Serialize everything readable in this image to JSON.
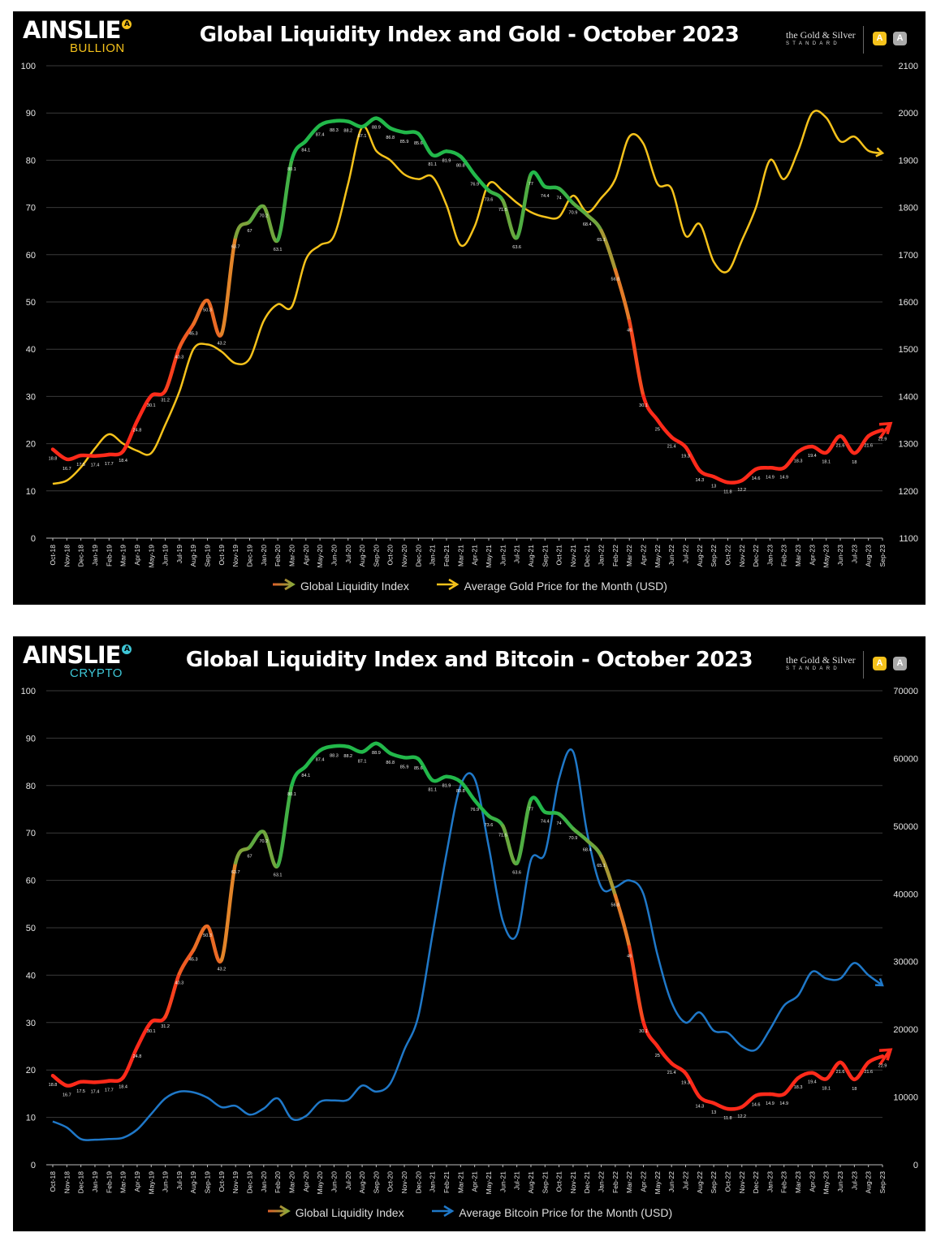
{
  "months": [
    "Oct-18",
    "Nov-18",
    "Dec-18",
    "Jan-19",
    "Feb-19",
    "Mar-19",
    "Apr-19",
    "May-19",
    "Jun-19",
    "Jul-19",
    "Aug-19",
    "Sep-19",
    "Oct-19",
    "Nov-19",
    "Dec-19",
    "Jan-20",
    "Feb-20",
    "Mar-20",
    "Apr-20",
    "May-20",
    "Jun-20",
    "Jul-20",
    "Aug-20",
    "Sep-20",
    "Oct-20",
    "Nov-20",
    "Dec-20",
    "Jan-21",
    "Feb-21",
    "Mar-21",
    "Apr-21",
    "May-21",
    "Jun-21",
    "Jul-21",
    "Aug-21",
    "Sep-21",
    "Oct-21",
    "Nov-21",
    "Dec-21",
    "Jan-22",
    "Feb-22",
    "Mar-22",
    "Apr-22",
    "May-22",
    "Jun-22",
    "Jul-22",
    "Aug-22",
    "Sep-22",
    "Oct-22",
    "Nov-22",
    "Dec-22",
    "Jan-23",
    "Feb-23",
    "Mar-23",
    "Apr-23",
    "May-23",
    "Jun-23",
    "Jul-23",
    "Aug-23",
    "Sep-23"
  ],
  "gli_values": [
    18.8,
    16.7,
    17.5,
    17.4,
    17.7,
    18.4,
    24.8,
    30.1,
    31.2,
    40.3,
    45.3,
    50.3,
    43.2,
    63.7,
    67,
    70.2,
    63.1,
    80.1,
    84.1,
    87.4,
    88.3,
    88.2,
    87.1,
    88.9,
    86.8,
    85.9,
    85.6,
    81.1,
    81.9,
    80.8,
    76.9,
    73.6,
    71.5,
    63.6,
    77,
    74.4,
    74,
    70.9,
    68.4,
    65.1,
    56.8,
    46,
    30.1,
    25,
    21.4,
    19.3,
    14.3,
    13,
    11.8,
    12.2,
    14.6,
    14.9,
    14.9,
    18.3,
    19.4,
    18.1,
    21.6,
    18,
    21.6,
    22.9
  ],
  "gli_labels": [
    "18.8",
    "16.7",
    "17.5",
    "17.4",
    "17.7",
    "18.4",
    "24.8",
    "30.1",
    "31.2",
    "40.3",
    "45.3",
    "50.3",
    "43.2",
    "63.7",
    "67",
    "70.2",
    "63.1",
    "80.1",
    "84.1",
    "87.4",
    "88.3",
    "88.2",
    "87.1",
    "88.9",
    "86.8",
    "85.9",
    "85.6",
    "81.1",
    "81.9",
    "80.8",
    "76.9",
    "73.6",
    "71.5",
    "63.6",
    "77",
    "74.4",
    "74",
    "70.9",
    "68.4",
    "65.1",
    "56.8",
    "46",
    "30.1",
    "25",
    "21.4",
    "19.3",
    "14.3",
    "13",
    "11.8",
    "12.2",
    "14.6",
    "14.9",
    "14.9",
    "18.3",
    "19.4",
    "18.1",
    "21.6",
    "18",
    "21.6",
    "22.9"
  ],
  "colors": {
    "gli_low": "#ff2a1a",
    "gli_mid": "#e08a2a",
    "gli_high": "#22b84a",
    "gold": "#f5c21b",
    "bitcoin": "#1f78c8",
    "grid": "#3a3a3a",
    "axis_text": "#e6e6e6",
    "bullion": "#f5c21b",
    "crypto": "#3ec6d6"
  },
  "chart_data": [
    {
      "type": "line",
      "title": "Global Liquidity Index and Gold - October 2023",
      "logo": {
        "brand": "AINSLIE",
        "sub": "BULLION"
      },
      "partner": {
        "line1": "the Gold & Silver",
        "line2": "STANDARD"
      },
      "left_axis": {
        "ylim": [
          0,
          100
        ],
        "ticks": [
          "0",
          "10",
          "20",
          "30",
          "40",
          "50",
          "60",
          "70",
          "80",
          "90",
          "100"
        ]
      },
      "right_axis": {
        "ylim": [
          1100,
          2100
        ],
        "ticks": [
          "1100",
          "1200",
          "1300",
          "1400",
          "1500",
          "1600",
          "1700",
          "1800",
          "1900",
          "2000",
          "2100"
        ]
      },
      "grid": true,
      "legend_placement": "bottom",
      "series": [
        {
          "name": "Global Liquidity Index",
          "axis": "left",
          "source": "gli_values"
        },
        {
          "name": "Average Gold Price for the Month (USD)",
          "axis": "right",
          "values": [
            1215,
            1222,
            1250,
            1290,
            1320,
            1300,
            1285,
            1280,
            1340,
            1410,
            1500,
            1510,
            1495,
            1470,
            1480,
            1560,
            1595,
            1590,
            1690,
            1720,
            1740,
            1850,
            1970,
            1920,
            1900,
            1870,
            1860,
            1865,
            1805,
            1720,
            1760,
            1850,
            1835,
            1810,
            1790,
            1780,
            1780,
            1825,
            1790,
            1820,
            1860,
            1950,
            1935,
            1850,
            1840,
            1740,
            1765,
            1685,
            1665,
            1730,
            1800,
            1900,
            1860,
            1920,
            2000,
            1990,
            1940,
            1950,
            1920,
            1915
          ]
        }
      ]
    },
    {
      "type": "line",
      "title": "Global Liquidity Index and Bitcoin - October 2023",
      "logo": {
        "brand": "AINSLIE",
        "sub": "CRYPTO"
      },
      "partner": {
        "line1": "the Gold & Silver",
        "line2": "STANDARD"
      },
      "left_axis": {
        "ylim": [
          0,
          100
        ],
        "ticks": [
          "0",
          "10",
          "20",
          "30",
          "40",
          "50",
          "60",
          "70",
          "80",
          "90",
          "100"
        ]
      },
      "right_axis": {
        "ylim": [
          0,
          70000
        ],
        "ticks": [
          "0",
          "10000",
          "20000",
          "30000",
          "40000",
          "50000",
          "60000",
          "70000"
        ]
      },
      "grid": true,
      "legend_placement": "bottom",
      "series": [
        {
          "name": "Global Liquidity Index",
          "axis": "left",
          "source": "gli_values"
        },
        {
          "name": "Average Bitcoin Price for the Month (USD)",
          "axis": "right",
          "values": [
            6400,
            5500,
            3800,
            3700,
            3800,
            4000,
            5200,
            7500,
            9800,
            10800,
            10700,
            9900,
            8500,
            8700,
            7400,
            8300,
            9800,
            6800,
            7200,
            9300,
            9500,
            9600,
            11700,
            10800,
            12000,
            17000,
            22000,
            34000,
            46000,
            56000,
            57000,
            47000,
            36000,
            34000,
            45000,
            46000,
            57000,
            61000,
            49000,
            41000,
            41000,
            42000,
            40000,
            31000,
            24000,
            21000,
            22500,
            19800,
            19500,
            17500,
            17000,
            20000,
            23500,
            25000,
            28500,
            27500,
            27500,
            29800,
            28000,
            26500
          ]
        }
      ]
    }
  ]
}
